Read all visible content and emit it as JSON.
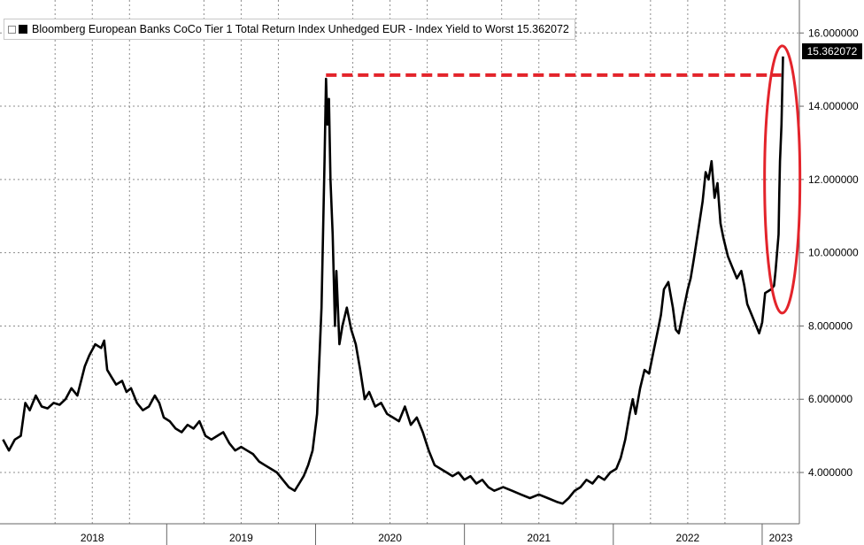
{
  "chart_data": {
    "type": "line",
    "title": "Bloomberg European Banks CoCo Tier 1 Total Return Index Unhedged EUR - Index Yield to Worst 15.362072",
    "series": [
      {
        "name": "Bloomberg European Banks CoCo Tier 1 Total Return Index Unhedged EUR - Index Yield to Worst 15.362072",
        "color": "#000000",
        "points": [
          [
            2017.9,
            4.9
          ],
          [
            2017.94,
            4.6
          ],
          [
            2017.98,
            4.9
          ],
          [
            2018.02,
            5.0
          ],
          [
            2018.05,
            5.9
          ],
          [
            2018.08,
            5.7
          ],
          [
            2018.12,
            6.1
          ],
          [
            2018.16,
            5.8
          ],
          [
            2018.2,
            5.75
          ],
          [
            2018.24,
            5.9
          ],
          [
            2018.28,
            5.85
          ],
          [
            2018.32,
            6.0
          ],
          [
            2018.36,
            6.3
          ],
          [
            2018.4,
            6.1
          ],
          [
            2018.45,
            6.9
          ],
          [
            2018.48,
            7.2
          ],
          [
            2018.52,
            7.5
          ],
          [
            2018.56,
            7.4
          ],
          [
            2018.58,
            7.6
          ],
          [
            2018.6,
            6.8
          ],
          [
            2018.63,
            6.6
          ],
          [
            2018.66,
            6.4
          ],
          [
            2018.7,
            6.5
          ],
          [
            2018.73,
            6.2
          ],
          [
            2018.76,
            6.3
          ],
          [
            2018.8,
            5.9
          ],
          [
            2018.84,
            5.7
          ],
          [
            2018.88,
            5.8
          ],
          [
            2018.92,
            6.1
          ],
          [
            2018.95,
            5.9
          ],
          [
            2018.98,
            5.5
          ],
          [
            2019.02,
            5.4
          ],
          [
            2019.06,
            5.2
          ],
          [
            2019.1,
            5.1
          ],
          [
            2019.14,
            5.3
          ],
          [
            2019.18,
            5.2
          ],
          [
            2019.22,
            5.4
          ],
          [
            2019.26,
            5.0
          ],
          [
            2019.3,
            4.9
          ],
          [
            2019.34,
            5.0
          ],
          [
            2019.38,
            5.1
          ],
          [
            2019.42,
            4.8
          ],
          [
            2019.46,
            4.6
          ],
          [
            2019.5,
            4.7
          ],
          [
            2019.54,
            4.6
          ],
          [
            2019.58,
            4.5
          ],
          [
            2019.62,
            4.3
          ],
          [
            2019.66,
            4.2
          ],
          [
            2019.7,
            4.1
          ],
          [
            2019.74,
            4.0
          ],
          [
            2019.78,
            3.8
          ],
          [
            2019.82,
            3.6
          ],
          [
            2019.86,
            3.5
          ],
          [
            2019.89,
            3.7
          ],
          [
            2019.92,
            3.9
          ],
          [
            2019.95,
            4.2
          ],
          [
            2019.98,
            4.6
          ],
          [
            2020.01,
            5.6
          ],
          [
            2020.04,
            8.5
          ],
          [
            2020.06,
            12.5
          ],
          [
            2020.07,
            14.75
          ],
          [
            2020.08,
            13.5
          ],
          [
            2020.09,
            14.2
          ],
          [
            2020.1,
            12.0
          ],
          [
            2020.115,
            10.5
          ],
          [
            2020.13,
            8.0
          ],
          [
            2020.14,
            9.5
          ],
          [
            2020.16,
            7.5
          ],
          [
            2020.18,
            8.0
          ],
          [
            2020.21,
            8.5
          ],
          [
            2020.24,
            7.9
          ],
          [
            2020.27,
            7.5
          ],
          [
            2020.3,
            6.8
          ],
          [
            2020.33,
            6.0
          ],
          [
            2020.36,
            6.2
          ],
          [
            2020.4,
            5.8
          ],
          [
            2020.44,
            5.9
          ],
          [
            2020.48,
            5.6
          ],
          [
            2020.52,
            5.5
          ],
          [
            2020.56,
            5.4
          ],
          [
            2020.6,
            5.8
          ],
          [
            2020.64,
            5.3
          ],
          [
            2020.68,
            5.5
          ],
          [
            2020.72,
            5.1
          ],
          [
            2020.76,
            4.6
          ],
          [
            2020.8,
            4.2
          ],
          [
            2020.84,
            4.1
          ],
          [
            2020.88,
            4.0
          ],
          [
            2020.92,
            3.9
          ],
          [
            2020.96,
            4.0
          ],
          [
            2021.0,
            3.8
          ],
          [
            2021.04,
            3.9
          ],
          [
            2021.08,
            3.7
          ],
          [
            2021.12,
            3.8
          ],
          [
            2021.16,
            3.6
          ],
          [
            2021.2,
            3.5
          ],
          [
            2021.26,
            3.6
          ],
          [
            2021.32,
            3.5
          ],
          [
            2021.38,
            3.4
          ],
          [
            2021.44,
            3.3
          ],
          [
            2021.5,
            3.4
          ],
          [
            2021.56,
            3.3
          ],
          [
            2021.62,
            3.2
          ],
          [
            2021.66,
            3.15
          ],
          [
            2021.7,
            3.3
          ],
          [
            2021.74,
            3.5
          ],
          [
            2021.78,
            3.6
          ],
          [
            2021.82,
            3.8
          ],
          [
            2021.86,
            3.7
          ],
          [
            2021.9,
            3.9
          ],
          [
            2021.94,
            3.8
          ],
          [
            2021.98,
            4.0
          ],
          [
            2022.02,
            4.1
          ],
          [
            2022.05,
            4.4
          ],
          [
            2022.08,
            4.9
          ],
          [
            2022.11,
            5.6
          ],
          [
            2022.13,
            6.0
          ],
          [
            2022.15,
            5.6
          ],
          [
            2022.18,
            6.3
          ],
          [
            2022.21,
            6.8
          ],
          [
            2022.24,
            6.7
          ],
          [
            2022.27,
            7.3
          ],
          [
            2022.3,
            7.9
          ],
          [
            2022.32,
            8.3
          ],
          [
            2022.34,
            9.0
          ],
          [
            2022.37,
            9.2
          ],
          [
            2022.4,
            8.5
          ],
          [
            2022.42,
            7.9
          ],
          [
            2022.44,
            7.8
          ],
          [
            2022.47,
            8.4
          ],
          [
            2022.5,
            9.0
          ],
          [
            2022.52,
            9.3
          ],
          [
            2022.54,
            9.8
          ],
          [
            2022.57,
            10.6
          ],
          [
            2022.6,
            11.4
          ],
          [
            2022.62,
            12.2
          ],
          [
            2022.64,
            12.0
          ],
          [
            2022.66,
            12.5
          ],
          [
            2022.68,
            11.5
          ],
          [
            2022.7,
            11.9
          ],
          [
            2022.72,
            10.8
          ],
          [
            2022.74,
            10.4
          ],
          [
            2022.77,
            9.9
          ],
          [
            2022.8,
            9.6
          ],
          [
            2022.83,
            9.3
          ],
          [
            2022.86,
            9.5
          ],
          [
            2022.88,
            9.1
          ],
          [
            2022.9,
            8.6
          ],
          [
            2022.93,
            8.3
          ],
          [
            2022.96,
            8.0
          ],
          [
            2022.98,
            7.8
          ],
          [
            2023.0,
            8.1
          ],
          [
            2023.02,
            8.9
          ],
          [
            2023.04,
            8.95
          ],
          [
            2023.06,
            9.0
          ],
          [
            2023.08,
            9.1
          ],
          [
            2023.09,
            9.5
          ],
          [
            2023.1,
            10.0
          ],
          [
            2023.11,
            10.5
          ],
          [
            2023.115,
            11.6
          ],
          [
            2023.12,
            12.5
          ],
          [
            2023.13,
            13.5
          ],
          [
            2023.14,
            15.36
          ]
        ]
      }
    ],
    "yaxis_ticks": [
      "4.000000",
      "6.000000",
      "8.000000",
      "10.000000",
      "12.000000",
      "14.000000",
      "16.000000"
    ],
    "ylim": [
      2.6,
      16.9
    ],
    "xlim": [
      2017.88,
      2023.25
    ],
    "x_tick_labels": [
      "2018",
      "2019",
      "2020",
      "2021",
      "2022",
      "2023"
    ],
    "grid": true,
    "last_value_label": "15.362072",
    "annotations": [
      {
        "type": "dashed-line",
        "y": 14.85,
        "x_from": 2020.07,
        "x_to": 2023.14,
        "color": "#e3242b"
      },
      {
        "type": "ellipse",
        "center_x": 2023.135,
        "center_y": 12.0,
        "color": "#e3242b"
      }
    ],
    "colors": {
      "line": "#000000",
      "highlight": "#e3242b",
      "grid": "#8c8c8c",
      "background": "#ffffff"
    }
  }
}
